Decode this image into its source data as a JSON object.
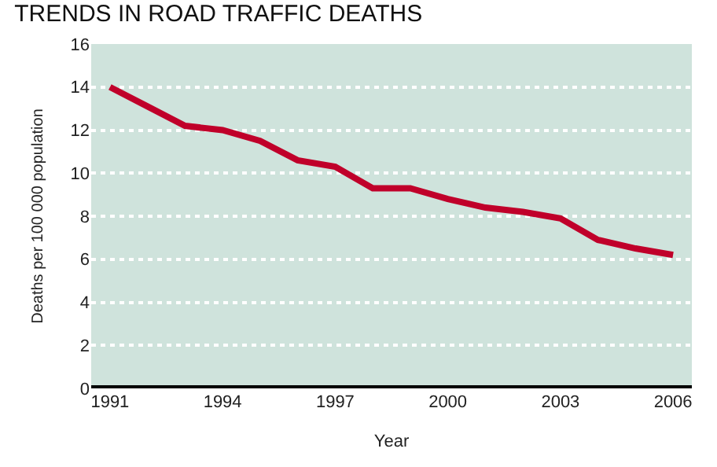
{
  "chart_data": {
    "type": "line",
    "title": "TRENDS IN ROAD TRAFFIC DEATHS",
    "xlabel": "Year",
    "ylabel": "Deaths per 100 000 population",
    "x": [
      1991,
      1992,
      1993,
      1994,
      1995,
      1996,
      1997,
      1998,
      1999,
      2000,
      2001,
      2002,
      2003,
      2004,
      2005,
      2006
    ],
    "series": [
      {
        "color": "#c0002a",
        "values": [
          14.0,
          13.1,
          12.2,
          12.0,
          11.5,
          10.6,
          10.3,
          9.3,
          9.3,
          8.8,
          8.4,
          8.2,
          7.9,
          6.9,
          6.5,
          6.2
        ]
      }
    ],
    "xlim": [
      1990.5,
      2006.5
    ],
    "xticks": [
      1991,
      1994,
      1997,
      2000,
      2003,
      2006
    ],
    "ylim": [
      0,
      16
    ],
    "yticks": [
      0,
      2,
      4,
      6,
      8,
      10,
      12,
      14,
      16
    ],
    "grid": "y",
    "marker": "none",
    "line_style": "solid"
  }
}
